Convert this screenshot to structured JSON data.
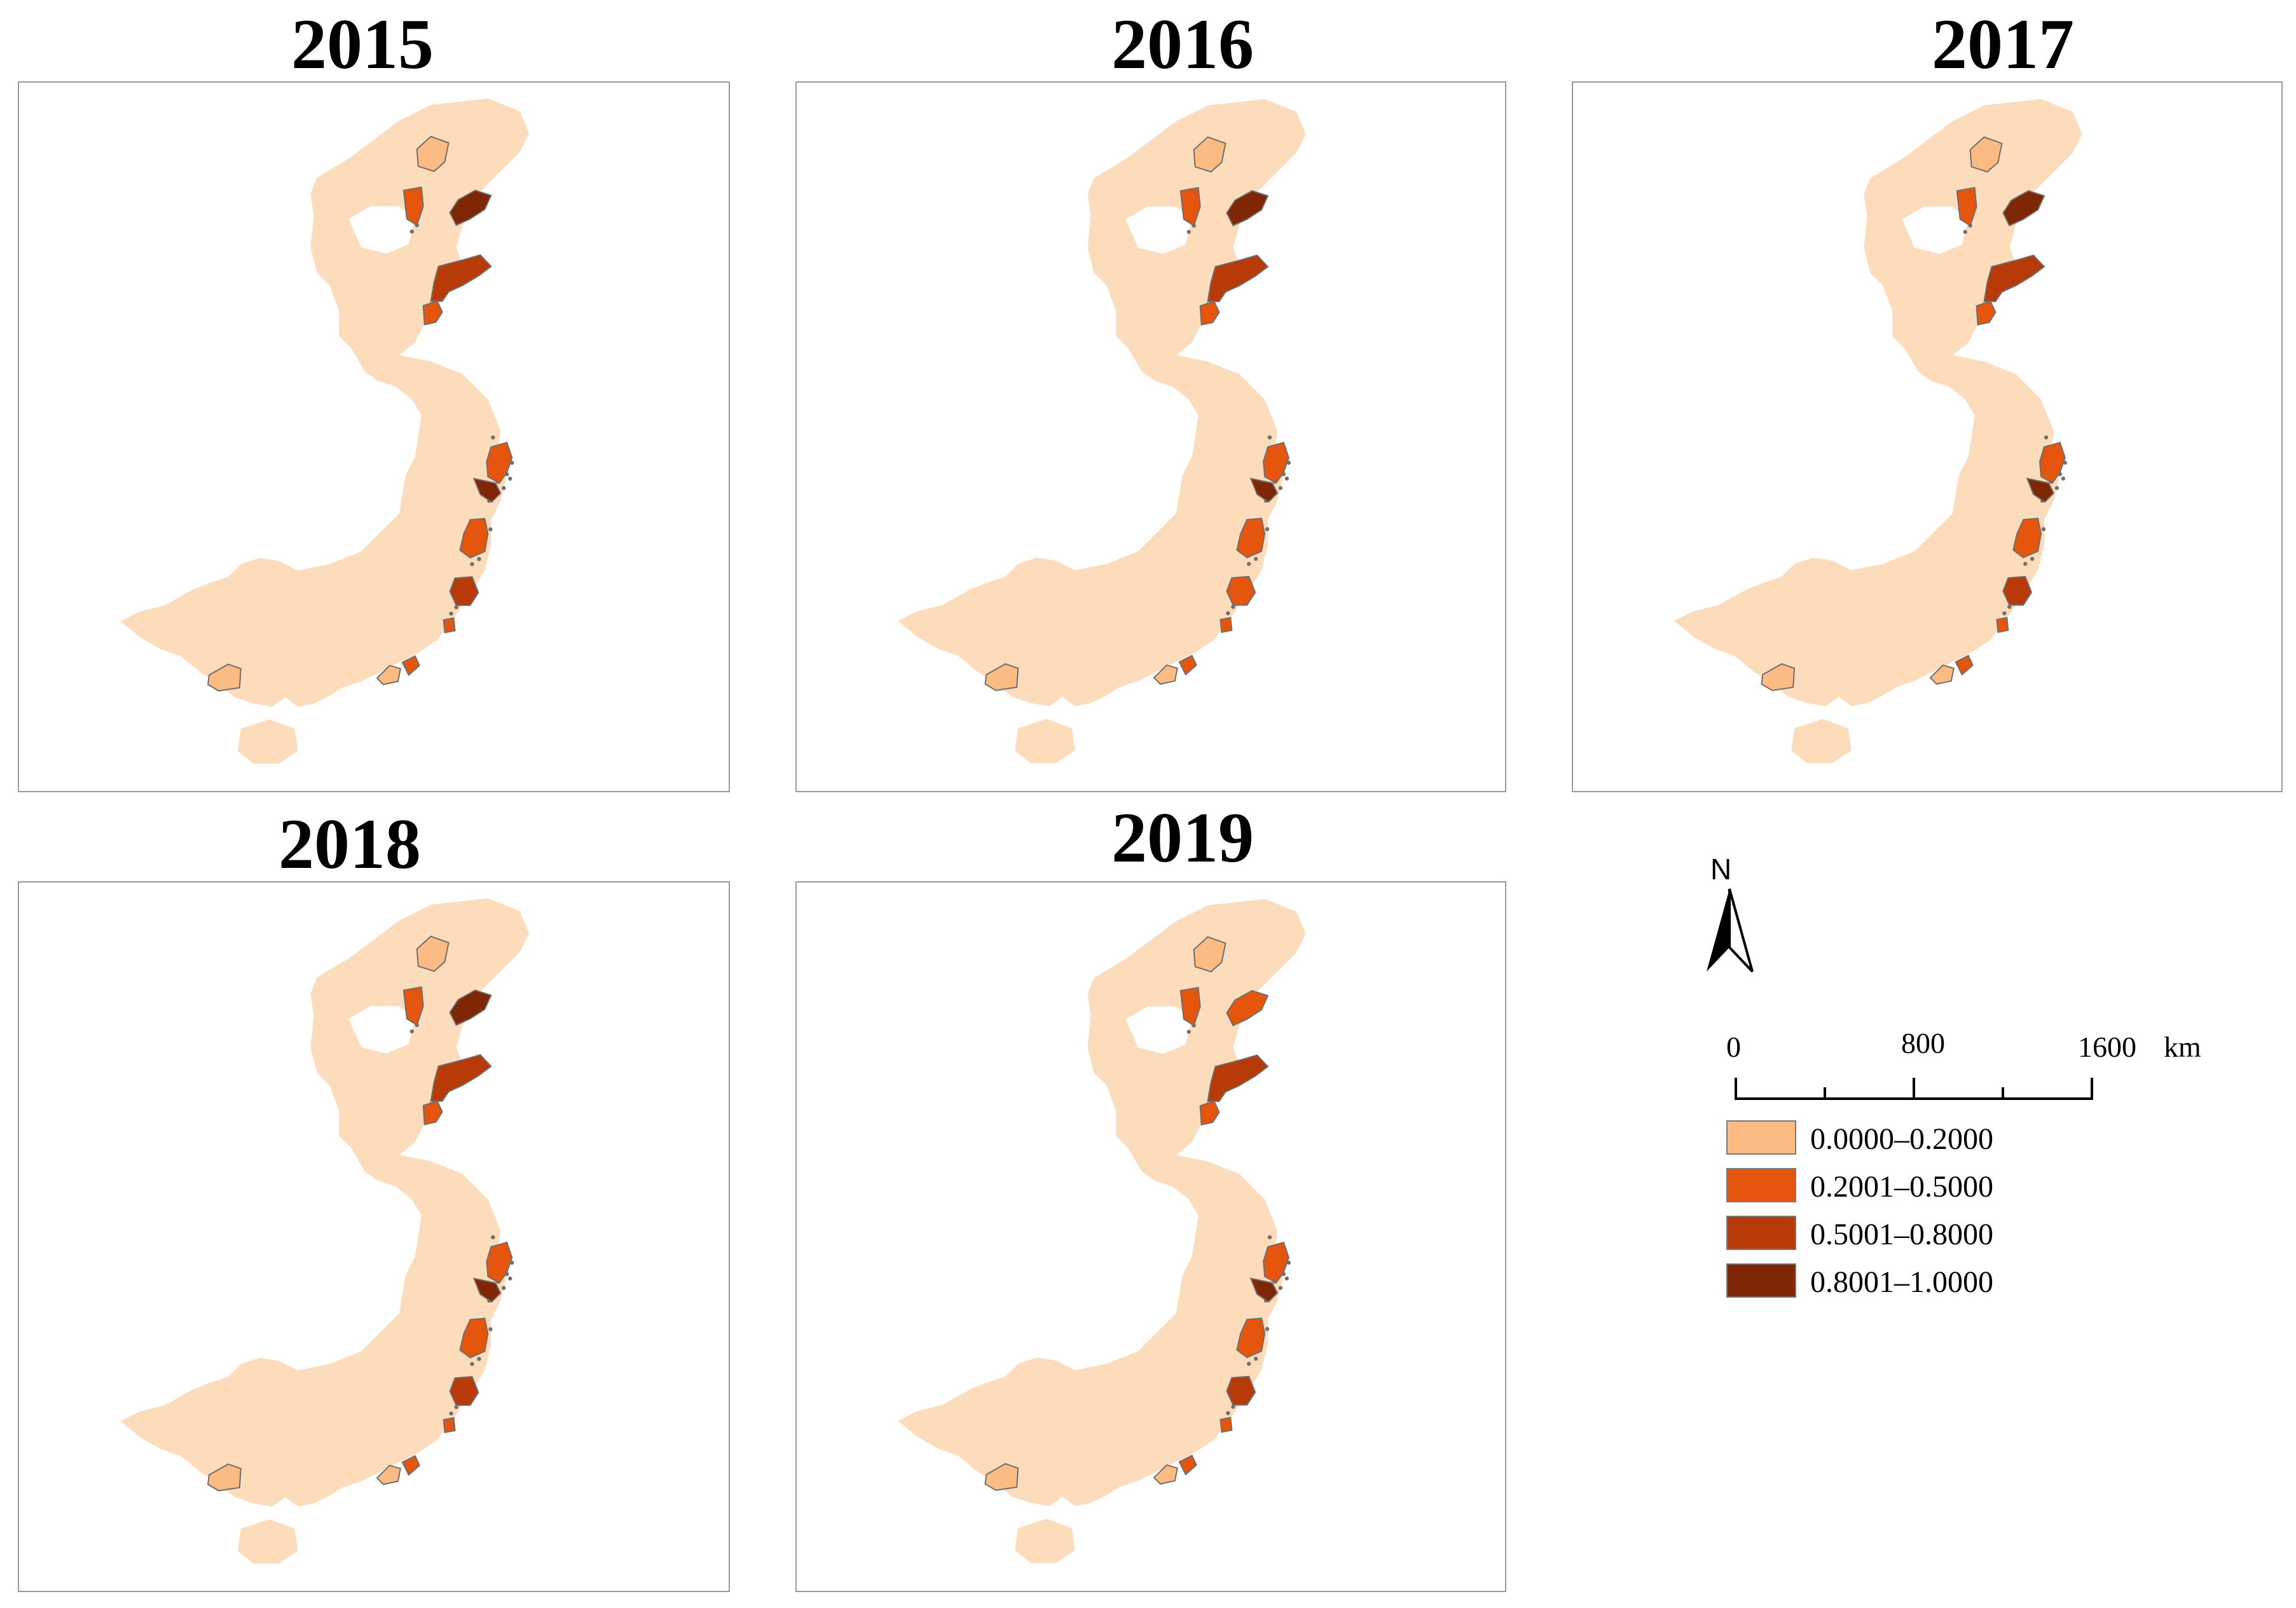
{
  "panels": [
    {
      "year": "2015",
      "classes": [
        0,
        1,
        3,
        2,
        1,
        1,
        3,
        1,
        2,
        1,
        0,
        1,
        0
      ]
    },
    {
      "year": "2016",
      "classes": [
        0,
        1,
        3,
        2,
        1,
        1,
        3,
        1,
        1,
        1,
        0,
        1,
        0
      ]
    },
    {
      "year": "2017",
      "classes": [
        0,
        1,
        3,
        2,
        1,
        1,
        3,
        1,
        2,
        1,
        0,
        1,
        0
      ]
    },
    {
      "year": "2018",
      "classes": [
        0,
        1,
        3,
        2,
        1,
        1,
        3,
        1,
        2,
        1,
        0,
        1,
        0
      ]
    },
    {
      "year": "2019",
      "classes": [
        0,
        1,
        1,
        2,
        1,
        1,
        3,
        1,
        2,
        1,
        0,
        1,
        0
      ]
    }
  ],
  "base_region_color": "#fddcbc",
  "legend": {
    "north_label": "N",
    "scale": {
      "labels": [
        "0",
        "800",
        "1600"
      ],
      "unit": "km"
    },
    "classes": [
      {
        "label": "0.0000–0.2000",
        "color": "#fdbb84"
      },
      {
        "label": "0.2001–0.5000",
        "color": "#e6550d"
      },
      {
        "label": "0.5001–0.8000",
        "color": "#b73a08"
      },
      {
        "label": "0.8001–1.0000",
        "color": "#7f2704"
      }
    ]
  }
}
